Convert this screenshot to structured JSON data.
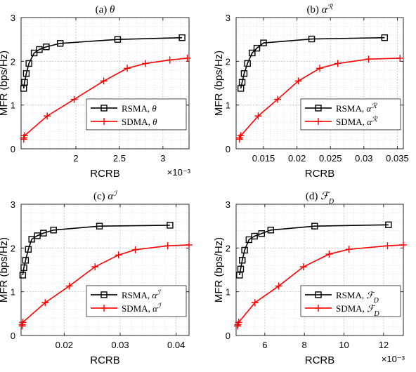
{
  "chart_data": [
    {
      "type": "line",
      "title": "(a) θ",
      "xlabel": "RCRB",
      "ylabel": "MFR (bps/Hz)",
      "x_multiplier": "×10⁻³",
      "xlim": [
        1.37,
        3.3
      ],
      "ylim": [
        0,
        3
      ],
      "xticks": [
        2,
        2.5,
        3
      ],
      "yticks": [
        0,
        1,
        2,
        3
      ],
      "grid": true,
      "legend_position": "center-right",
      "series": [
        {
          "name": "RSMA, θ",
          "color": "#000000",
          "marker": "square",
          "x": [
            1.4,
            1.41,
            1.43,
            1.46,
            1.52,
            1.58,
            1.66,
            1.82,
            2.48,
            3.22
          ],
          "y": [
            1.38,
            1.52,
            1.72,
            1.95,
            2.19,
            2.27,
            2.33,
            2.41,
            2.5,
            2.54
          ]
        },
        {
          "name": "SDMA, θ",
          "color": "#ff0000",
          "marker": "plus",
          "x": [
            1.4,
            1.4,
            1.41,
            1.67,
            1.98,
            2.32,
            2.59,
            2.8,
            3.08,
            3.28
          ],
          "y": [
            0.22,
            0.25,
            0.3,
            0.75,
            1.13,
            1.55,
            1.84,
            1.95,
            2.03,
            2.07
          ]
        }
      ]
    },
    {
      "type": "line",
      "title": "(b) α^R",
      "xlabel": "RCRB",
      "ylabel": "MFR (bps/Hz)",
      "x_multiplier": "",
      "xlim": [
        0.0109,
        0.0359
      ],
      "ylim": [
        0,
        3
      ],
      "xticks": [
        0.015,
        0.02,
        0.025,
        0.03,
        0.035
      ],
      "xtick_labels": [
        "0.015",
        "0.02",
        "0.025",
        "0.03",
        "0.035"
      ],
      "yticks": [
        0,
        1,
        2,
        3
      ],
      "grid": true,
      "legend_position": "center-right",
      "series": [
        {
          "name": "RSMA, α^R",
          "color": "#000000",
          "marker": "square",
          "x": [
            0.0116,
            0.0118,
            0.0121,
            0.0126,
            0.0133,
            0.014,
            0.015,
            0.0222,
            0.0331
          ],
          "y": [
            1.38,
            1.52,
            1.72,
            1.95,
            2.19,
            2.3,
            2.42,
            2.51,
            2.54
          ]
        },
        {
          "name": "SDMA, α^R",
          "color": "#ff0000",
          "marker": "plus",
          "x": [
            0.0114,
            0.0114,
            0.0116,
            0.0142,
            0.0171,
            0.0202,
            0.0234,
            0.0261,
            0.0307,
            0.0354
          ],
          "y": [
            0.22,
            0.25,
            0.3,
            0.75,
            1.13,
            1.55,
            1.84,
            1.95,
            2.05,
            2.07
          ]
        }
      ]
    },
    {
      "type": "line",
      "title": "(c) α^I",
      "xlabel": "RCRB",
      "ylabel": "MFR (bps/Hz)",
      "x_multiplier": "",
      "xlim": [
        0.0123,
        0.0423
      ],
      "ylim": [
        0,
        3
      ],
      "xticks": [
        0.02,
        0.03,
        0.04
      ],
      "xtick_labels": [
        "0.02",
        "0.03",
        "0.04"
      ],
      "yticks": [
        0,
        1,
        2,
        3
      ],
      "grid": true,
      "legend_position": "center-right",
      "series": [
        {
          "name": "RSMA, α^I",
          "color": "#000000",
          "marker": "square",
          "x": [
            0.0126,
            0.0128,
            0.0131,
            0.0136,
            0.0142,
            0.0152,
            0.0163,
            0.0181,
            0.0263,
            0.0389
          ],
          "y": [
            1.38,
            1.55,
            1.72,
            1.97,
            2.2,
            2.28,
            2.34,
            2.41,
            2.5,
            2.52
          ]
        },
        {
          "name": "SDMA, α^I",
          "color": "#ff0000",
          "marker": "plus",
          "x": [
            0.0125,
            0.0125,
            0.0126,
            0.0166,
            0.0209,
            0.0255,
            0.0297,
            0.0327,
            0.0385,
            0.0423
          ],
          "y": [
            0.22,
            0.25,
            0.3,
            0.75,
            1.13,
            1.57,
            1.84,
            1.96,
            2.05,
            2.07
          ]
        }
      ]
    },
    {
      "type": "line",
      "title": "(d) F_D",
      "xlabel": "RCRB",
      "ylabel": "MFR (bps/Hz)",
      "x_multiplier": "×10⁻³",
      "xlim": [
        4.55,
        13.0
      ],
      "ylim": [
        0,
        3
      ],
      "xticks": [
        6,
        8,
        10,
        12
      ],
      "yticks": [
        0,
        1,
        2,
        3
      ],
      "grid": true,
      "legend_position": "center-right",
      "series": [
        {
          "name": "RSMA, F_D",
          "color": "#000000",
          "marker": "square",
          "x": [
            4.72,
            4.78,
            4.86,
            4.98,
            5.2,
            5.48,
            5.84,
            6.3,
            8.52,
            12.25
          ],
          "y": [
            1.38,
            1.52,
            1.72,
            1.95,
            2.19,
            2.27,
            2.33,
            2.41,
            2.5,
            2.53
          ]
        },
        {
          "name": "SDMA, F_D",
          "color": "#ff0000",
          "marker": "plus",
          "x": [
            4.62,
            4.64,
            4.68,
            5.5,
            6.7,
            7.95,
            9.25,
            10.25,
            12.2,
            13.0
          ],
          "y": [
            0.22,
            0.25,
            0.3,
            0.75,
            1.13,
            1.57,
            1.86,
            1.97,
            2.05,
            2.07
          ]
        }
      ]
    }
  ]
}
